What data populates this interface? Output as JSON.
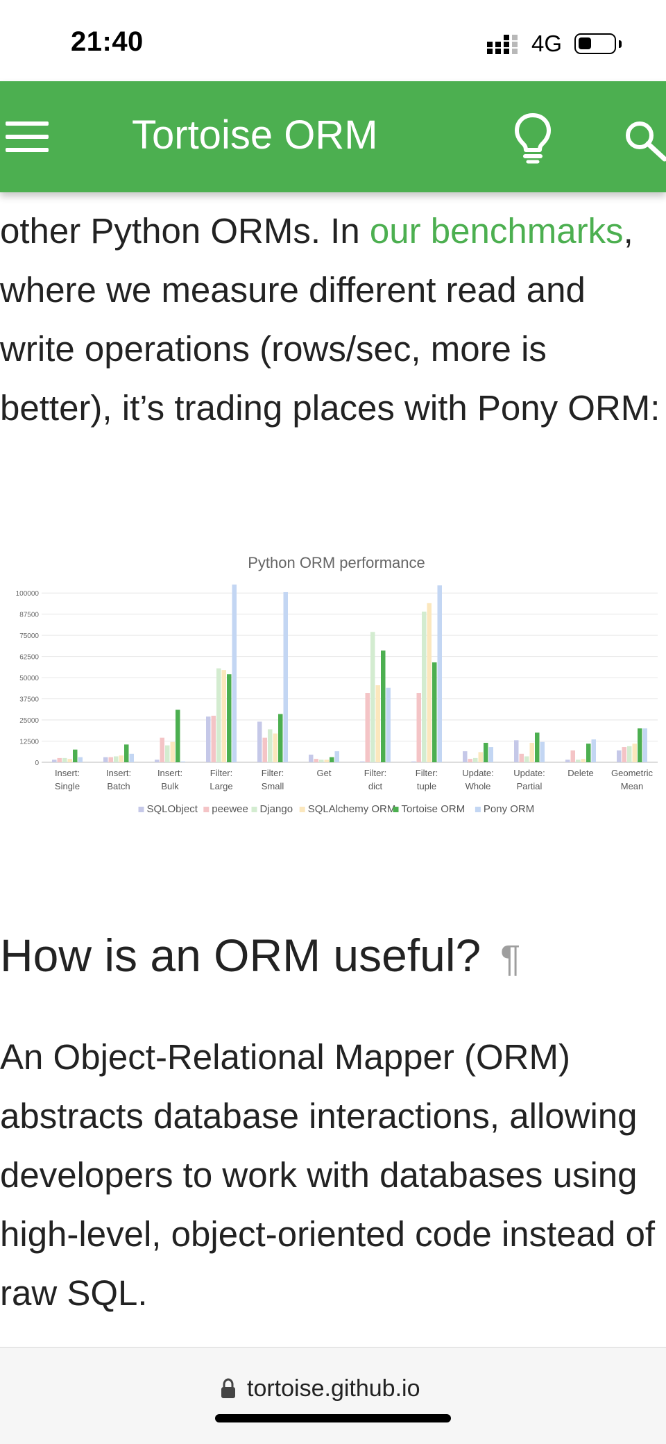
{
  "status_bar": {
    "time": "21:40",
    "network": "4G"
  },
  "header": {
    "title": "Tortoise ORM"
  },
  "intro": {
    "text_before": "other Python ORMs. In ",
    "link": "our benchmarks",
    "text_after": ", where we measure different read and write operations (rows/sec, more is better), it’s trading places with Pony ORM:"
  },
  "chart_data": {
    "type": "bar",
    "title": "Python ORM performance",
    "categories": [
      "Insert: Single",
      "Insert: Batch",
      "Insert: Bulk",
      "Filter: Large",
      "Filter: Small",
      "Get",
      "Filter: dict",
      "Filter: tuple",
      "Update: Whole",
      "Update: Partial",
      "Delete",
      "Geometric Mean"
    ],
    "y_ticks": [
      "0",
      "12500",
      "25000",
      "37500",
      "50000",
      "62500",
      "75000",
      "87500",
      "100000"
    ],
    "ylim": [
      0,
      105000
    ],
    "grid": true,
    "legend_position": "bottom",
    "series": [
      {
        "name": "SQLObject",
        "color": "#c5c8e8",
        "values": [
          1500,
          3000,
          1500,
          27000,
          24000,
          4500,
          500,
          500,
          6500,
          13000,
          1500,
          7000
        ]
      },
      {
        "name": "peewee",
        "color": "#f4c4c6",
        "values": [
          2500,
          3000,
          14500,
          27500,
          14500,
          2000,
          41000,
          41000,
          2000,
          5000,
          7000,
          9000
        ]
      },
      {
        "name": "Django",
        "color": "#d3ecd0",
        "values": [
          2500,
          3500,
          10000,
          55500,
          19500,
          1500,
          77000,
          89000,
          2500,
          3500,
          1500,
          9500
        ]
      },
      {
        "name": "SQLAlchemy ORM",
        "color": "#fbe7bd",
        "values": [
          2000,
          4000,
          12000,
          54500,
          17000,
          1500,
          45500,
          94000,
          6000,
          11500,
          2000,
          11000
        ]
      },
      {
        "name": "Tortoise ORM",
        "color": "#4caf50",
        "values": [
          7500,
          10500,
          31000,
          52000,
          28500,
          3000,
          66000,
          59000,
          11500,
          17500,
          11000,
          20000
        ]
      },
      {
        "name": "Pony ORM",
        "color": "#c3d6f3",
        "values": [
          3000,
          5000,
          500,
          105000,
          100500,
          6500,
          44000,
          104500,
          9000,
          12000,
          13500,
          20000
        ]
      }
    ]
  },
  "section": {
    "heading": "How is an ORM useful?",
    "anchor": "¶"
  },
  "body2": "An Object-Relational Mapper (ORM) abstracts database interactions, allowing developers to work with databases using high-level, object-oriented code instead of raw SQL.",
  "url_bar": {
    "domain": "tortoise.github.io"
  }
}
